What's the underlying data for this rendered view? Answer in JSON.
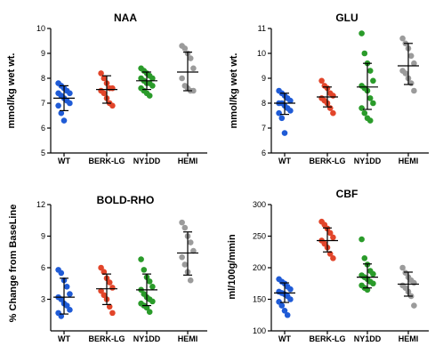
{
  "chart_data": [
    {
      "type": "scatter",
      "title": "NAA",
      "ylabel": "mmol/kg wet wt.",
      "xlabel": "",
      "categories": [
        "WT",
        "BERK-LG",
        "NY1DD",
        "HEMI"
      ],
      "ylim": [
        5,
        10
      ],
      "yticks": [
        5,
        6,
        7,
        8,
        9,
        10
      ],
      "colors": [
        "#1f5bd6",
        "#e2452a",
        "#2a9b2a",
        "#9b9b9b"
      ],
      "series": [
        {
          "values": [
            7.8,
            7.7,
            7.6,
            7.5,
            7.4,
            7.4,
            7.3,
            7.2,
            7.1,
            7.0,
            6.9,
            6.6,
            6.3
          ],
          "mean": 7.2,
          "sd_low": 6.7,
          "sd_high": 7.7
        },
        {
          "values": [
            8.2,
            8.0,
            7.8,
            7.6,
            7.6,
            7.5,
            7.4,
            7.2,
            7.0,
            6.9
          ],
          "mean": 7.55,
          "sd_low": 7.0,
          "sd_high": 8.1
        },
        {
          "values": [
            8.4,
            8.3,
            8.2,
            8.1,
            8.0,
            8.0,
            7.9,
            7.8,
            7.8,
            7.7,
            7.6,
            7.5,
            7.4,
            7.3
          ],
          "mean": 7.9,
          "sd_low": 7.55,
          "sd_high": 8.25
        },
        {
          "values": [
            9.3,
            9.2,
            9.0,
            8.8,
            8.4,
            8.0,
            7.7,
            7.6,
            7.5,
            7.5
          ],
          "mean": 8.25,
          "sd_low": 7.5,
          "sd_high": 9.05
        }
      ]
    },
    {
      "type": "scatter",
      "title": "GLU",
      "ylabel": "mmol/kg wet wt.",
      "xlabel": "",
      "categories": [
        "WT",
        "BERK-LG",
        "NY1DD",
        "HEMI"
      ],
      "ylim": [
        6,
        11
      ],
      "yticks": [
        6,
        7,
        8,
        9,
        10,
        11
      ],
      "colors": [
        "#1f5bd6",
        "#e2452a",
        "#2a9b2a",
        "#9b9b9b"
      ],
      "series": [
        {
          "values": [
            8.5,
            8.4,
            8.3,
            8.2,
            8.1,
            8.0,
            8.0,
            7.9,
            7.8,
            7.7,
            7.6,
            7.4,
            6.8
          ],
          "mean": 8.0,
          "sd_low": 7.55,
          "sd_high": 8.4
        },
        {
          "values": [
            8.9,
            8.7,
            8.6,
            8.4,
            8.3,
            8.2,
            8.1,
            8.0,
            7.8,
            7.6
          ],
          "mean": 8.25,
          "sd_low": 7.85,
          "sd_high": 8.65
        },
        {
          "values": [
            10.8,
            10.0,
            9.6,
            9.3,
            8.9,
            8.7,
            8.6,
            8.5,
            8.2,
            8.0,
            7.8,
            7.6,
            7.4,
            7.3
          ],
          "mean": 8.65,
          "sd_low": 7.75,
          "sd_high": 9.6
        },
        {
          "values": [
            10.6,
            10.4,
            10.2,
            9.9,
            9.6,
            9.3,
            9.0,
            8.8,
            8.5,
            9.2
          ],
          "mean": 9.5,
          "sd_low": 8.75,
          "sd_high": 10.4
        }
      ]
    },
    {
      "type": "scatter",
      "title": "BOLD-RHO",
      "ylabel": "% Change from BaseLine",
      "xlabel": "",
      "categories": [
        "WT",
        "BERK-LG",
        "NY1DD",
        "HEMI"
      ],
      "ylim": [
        0,
        12
      ],
      "yticks": [
        3,
        6,
        9,
        12
      ],
      "colors": [
        "#1f5bd6",
        "#e2452a",
        "#2a9b2a",
        "#9b9b9b"
      ],
      "series": [
        {
          "values": [
            5.8,
            5.5,
            4.8,
            4.2,
            3.5,
            3.2,
            3.0,
            2.6,
            2.4,
            2.0,
            1.7,
            1.4
          ],
          "mean": 3.2,
          "sd_low": 1.6,
          "sd_high": 5.0
        },
        {
          "values": [
            6.0,
            5.6,
            5.0,
            4.6,
            4.1,
            3.8,
            3.4,
            3.0,
            2.3,
            1.7
          ],
          "mean": 4.0,
          "sd_low": 2.5,
          "sd_high": 5.4
        },
        {
          "values": [
            6.8,
            5.8,
            5.1,
            4.7,
            4.2,
            3.9,
            3.5,
            3.2,
            3.0,
            2.8,
            2.6,
            2.4,
            2.2,
            1.8
          ],
          "mean": 3.9,
          "sd_low": 2.4,
          "sd_high": 5.4
        },
        {
          "values": [
            10.3,
            9.8,
            9.0,
            8.4,
            7.6,
            7.0,
            6.3,
            5.6,
            4.8
          ],
          "mean": 7.4,
          "sd_low": 5.3,
          "sd_high": 9.4
        }
      ]
    },
    {
      "type": "scatter",
      "title": "CBF",
      "ylabel": "ml/100g/mmin",
      "xlabel": "",
      "categories": [
        "WT",
        "BERK-LG",
        "NY1DD",
        "HEMI"
      ],
      "ylim": [
        100,
        300
      ],
      "yticks": [
        100,
        150,
        200,
        250,
        300
      ],
      "colors": [
        "#1f5bd6",
        "#e2452a",
        "#2a9b2a",
        "#9b9b9b"
      ],
      "series": [
        {
          "values": [
            182,
            178,
            175,
            170,
            166,
            162,
            160,
            158,
            155,
            150,
            146,
            140,
            132,
            125
          ],
          "mean": 160,
          "sd_low": 145,
          "sd_high": 176
        },
        {
          "values": [
            273,
            268,
            262,
            255,
            248,
            243,
            238,
            232,
            222,
            215
          ],
          "mean": 243,
          "sd_low": 225,
          "sd_high": 263
        },
        {
          "values": [
            245,
            215,
            205,
            195,
            190,
            188,
            185,
            182,
            178,
            175,
            172,
            168,
            165
          ],
          "mean": 185,
          "sd_low": 168,
          "sd_high": 206
        },
        {
          "values": [
            200,
            192,
            185,
            180,
            176,
            172,
            168,
            162,
            155,
            140
          ],
          "mean": 174,
          "sd_low": 155,
          "sd_high": 193
        }
      ]
    }
  ]
}
